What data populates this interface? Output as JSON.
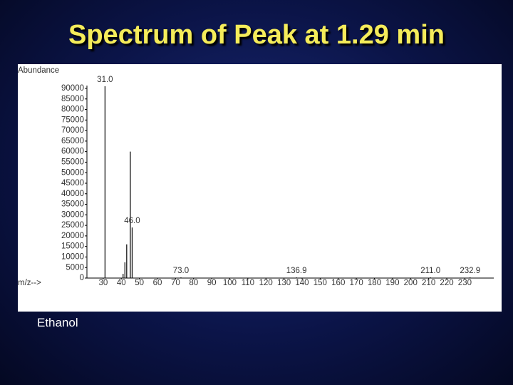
{
  "title": "Spectrum of Peak at 1.29 min",
  "caption": "Ethanol",
  "chart_data": {
    "type": "stem",
    "y_label": "Abundance",
    "x_label": "m/z-->",
    "x": [
      31,
      41,
      42,
      43,
      45,
      46,
      73,
      136.9,
      211,
      232.9
    ],
    "values": [
      91000,
      2000,
      7500,
      16000,
      60000,
      24000,
      300,
      300,
      300,
      300
    ],
    "color": "#000000",
    "annotations": [
      {
        "text": "31.0",
        "x": 31,
        "y": 91000
      },
      {
        "text": "46.0",
        "x": 46,
        "y": 24000
      },
      {
        "text": "73.0",
        "x": 73,
        "y": 300
      },
      {
        "text": "136.9",
        "x": 136.9,
        "y": 300
      },
      {
        "text": "211.0",
        "x": 211,
        "y": 300
      },
      {
        "text": "232.9",
        "x": 232.9,
        "y": 300
      }
    ],
    "xlim": [
      21,
      246
    ],
    "ylim": [
      0,
      90000
    ],
    "xticks": [
      30,
      40,
      50,
      60,
      70,
      80,
      90,
      100,
      110,
      120,
      130,
      140,
      150,
      160,
      170,
      180,
      190,
      200,
      210,
      220,
      230
    ],
    "yticks": [
      0,
      5000,
      10000,
      15000,
      20000,
      25000,
      30000,
      35000,
      40000,
      45000,
      50000,
      55000,
      60000,
      65000,
      70000,
      75000,
      80000,
      85000,
      90000
    ]
  }
}
